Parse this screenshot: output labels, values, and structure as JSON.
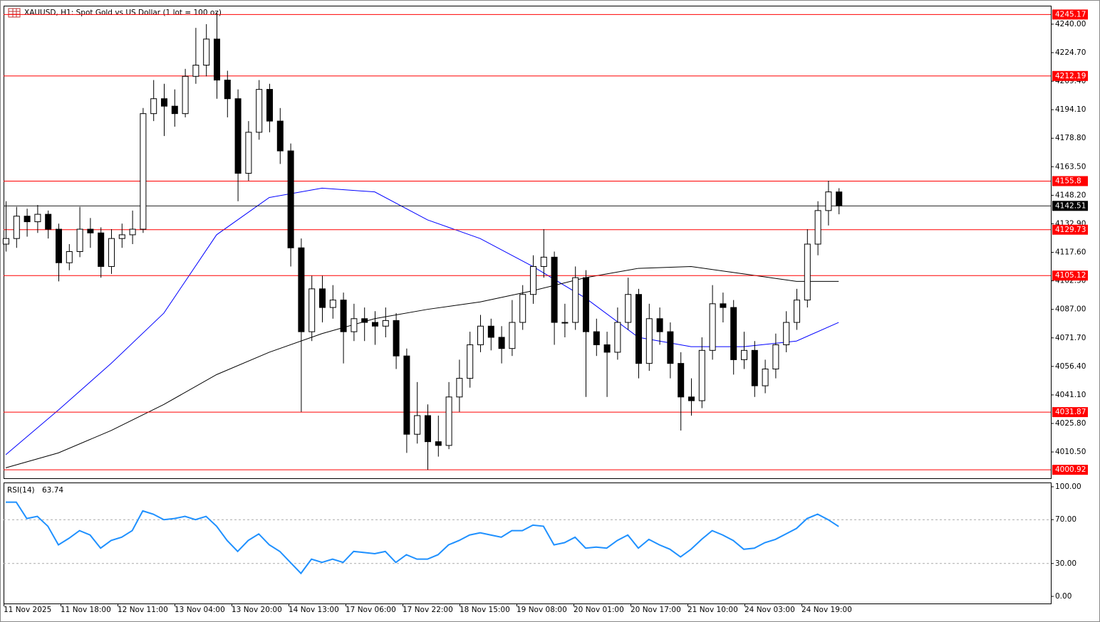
{
  "chart_data": {
    "type": "candlestick",
    "title": "XAUUSD, H1:  Spot Gold vs US Dollar (1 lot = 100 oz)",
    "bull_color": "#ffffff",
    "bear_color": "#000000",
    "ohlc": [
      [
        4122,
        4145,
        4118,
        4125
      ],
      [
        4125,
        4142,
        4120,
        4137
      ],
      [
        4137,
        4141,
        4126,
        4134
      ],
      [
        4134,
        4143,
        4128,
        4138
      ],
      [
        4138,
        4140,
        4125,
        4130
      ],
      [
        4130,
        4133,
        4102,
        4112
      ],
      [
        4112,
        4122,
        4108,
        4118
      ],
      [
        4118,
        4142,
        4115,
        4130
      ],
      [
        4130,
        4136,
        4120,
        4128
      ],
      [
        4128,
        4131,
        4104,
        4110
      ],
      [
        4110,
        4130,
        4106,
        4125
      ],
      [
        4125,
        4133,
        4120,
        4127
      ],
      [
        4127,
        4140,
        4122,
        4130
      ],
      [
        4130,
        4195,
        4128,
        4192
      ],
      [
        4192,
        4210,
        4188,
        4200
      ],
      [
        4200,
        4208,
        4180,
        4196
      ],
      [
        4196,
        4205,
        4185,
        4192
      ],
      [
        4192,
        4216,
        4190,
        4212
      ],
      [
        4212,
        4238,
        4208,
        4218
      ],
      [
        4218,
        4240,
        4212,
        4232
      ],
      [
        4232,
        4246,
        4200,
        4210
      ],
      [
        4210,
        4215,
        4190,
        4200
      ],
      [
        4200,
        4205,
        4145,
        4160
      ],
      [
        4160,
        4188,
        4156,
        4182
      ],
      [
        4182,
        4210,
        4178,
        4205
      ],
      [
        4205,
        4208,
        4182,
        4188
      ],
      [
        4188,
        4195,
        4165,
        4172
      ],
      [
        4172,
        4176,
        4110,
        4120
      ],
      [
        4120,
        4125,
        4032,
        4075
      ],
      [
        4075,
        4105,
        4070,
        4098
      ],
      [
        4098,
        4105,
        4080,
        4088
      ],
      [
        4088,
        4100,
        4082,
        4092
      ],
      [
        4092,
        4096,
        4058,
        4075
      ],
      [
        4075,
        4090,
        4070,
        4082
      ],
      [
        4082,
        4088,
        4070,
        4080
      ],
      [
        4080,
        4086,
        4068,
        4078
      ],
      [
        4078,
        4088,
        4072,
        4081
      ],
      [
        4081,
        4085,
        4055,
        4062
      ],
      [
        4062,
        4066,
        4010,
        4020
      ],
      [
        4020,
        4048,
        4015,
        4030
      ],
      [
        4030,
        4036,
        4001,
        4016
      ],
      [
        4016,
        4030,
        4008,
        4014
      ],
      [
        4014,
        4048,
        4012,
        4040
      ],
      [
        4040,
        4060,
        4032,
        4050
      ],
      [
        4050,
        4075,
        4045,
        4068
      ],
      [
        4068,
        4084,
        4064,
        4078
      ],
      [
        4078,
        4082,
        4065,
        4072
      ],
      [
        4072,
        4078,
        4058,
        4066
      ],
      [
        4066,
        4092,
        4062,
        4080
      ],
      [
        4080,
        4100,
        4076,
        4095
      ],
      [
        4095,
        4116,
        4090,
        4110
      ],
      [
        4110,
        4130,
        4104,
        4115
      ],
      [
        4115,
        4118,
        4068,
        4080
      ],
      [
        4080,
        4090,
        4072,
        4080
      ],
      [
        4080,
        4110,
        4076,
        4104
      ],
      [
        4104,
        4108,
        4040,
        4075
      ],
      [
        4075,
        4082,
        4062,
        4068
      ],
      [
        4068,
        4075,
        4040,
        4064
      ],
      [
        4064,
        4088,
        4060,
        4080
      ],
      [
        4080,
        4104,
        4076,
        4095
      ],
      [
        4095,
        4098,
        4050,
        4058
      ],
      [
        4058,
        4090,
        4054,
        4082
      ],
      [
        4082,
        4088,
        4068,
        4075
      ],
      [
        4075,
        4080,
        4050,
        4058
      ],
      [
        4058,
        4064,
        4022,
        4040
      ],
      [
        4040,
        4050,
        4030,
        4038
      ],
      [
        4038,
        4072,
        4034,
        4065
      ],
      [
        4065,
        4100,
        4060,
        4090
      ],
      [
        4090,
        4096,
        4080,
        4088
      ],
      [
        4088,
        4092,
        4052,
        4060
      ],
      [
        4060,
        4075,
        4055,
        4065
      ],
      [
        4065,
        4070,
        4040,
        4046
      ],
      [
        4046,
        4060,
        4042,
        4055
      ],
      [
        4055,
        4074,
        4050,
        4068
      ],
      [
        4068,
        4086,
        4064,
        4080
      ],
      [
        4080,
        4098,
        4076,
        4092
      ],
      [
        4092,
        4130,
        4088,
        4122
      ],
      [
        4122,
        4145,
        4116,
        4140
      ],
      [
        4140,
        4156,
        4132,
        4150
      ],
      [
        4150,
        4152,
        4138,
        4142.51
      ]
    ],
    "x_labels": [
      "11 Nov 2025",
      "11 Nov 18:00",
      "12 Nov 11:00",
      "13 Nov 04:00",
      "13 Nov 20:00",
      "14 Nov 13:00",
      "17 Nov 06:00",
      "17 Nov 22:00",
      "18 Nov 15:00",
      "19 Nov 08:00",
      "20 Nov 01:00",
      "20 Nov 17:00",
      "21 Nov 10:00",
      "24 Nov 03:00",
      "24 Nov 19:00"
    ],
    "ylim": [
      3996.4,
      4249.9
    ],
    "yticks": [
      {
        "value": 4240.0,
        "label": "4240.00"
      },
      {
        "value": 4224.7,
        "label": "4224.70"
      },
      {
        "value": 4209.4,
        "label": "4209.40"
      },
      {
        "value": 4194.1,
        "label": "4194.10"
      },
      {
        "value": 4178.8,
        "label": "4178.80"
      },
      {
        "value": 4163.5,
        "label": "4163.50"
      },
      {
        "value": 4148.2,
        "label": "4148.20"
      },
      {
        "value": 4132.9,
        "label": "4132.90"
      },
      {
        "value": 4117.6,
        "label": "4117.60"
      },
      {
        "value": 4102.3,
        "label": "4102.30"
      },
      {
        "value": 4087.0,
        "label": "4087.00"
      },
      {
        "value": 4071.7,
        "label": "4071.70"
      },
      {
        "value": 4056.4,
        "label": "4056.40"
      },
      {
        "value": 4041.1,
        "label": "4041.10"
      },
      {
        "value": 4025.8,
        "label": "4025.80"
      },
      {
        "value": 4010.5,
        "label": "4010.50"
      }
    ],
    "levels": {
      "color": "#ff0000",
      "values": [
        4245.17,
        4212.19,
        4155.8,
        4129.73,
        4105.12,
        4031.87,
        4000.92
      ]
    },
    "current_price": {
      "value": 4142.51,
      "color": "#000000"
    },
    "moving_averages": [
      {
        "color": "#0000ff",
        "x": [
          0,
          5,
          10,
          15,
          20,
          25,
          30,
          35,
          40,
          45,
          50,
          55,
          60,
          65,
          70,
          75,
          79
        ],
        "values": [
          4009,
          4033,
          4058,
          4085,
          4127,
          4147,
          4152,
          4150,
          4135,
          4125,
          4110,
          4093,
          4072,
          4067,
          4067,
          4070,
          4080
        ]
      },
      {
        "color": "#000000",
        "x": [
          0,
          5,
          10,
          15,
          20,
          25,
          30,
          35,
          40,
          45,
          50,
          55,
          60,
          65,
          70,
          75,
          79
        ],
        "values": [
          4002,
          4010,
          4022,
          4036,
          4052,
          4064,
          4074,
          4082,
          4087,
          4091,
          4097,
          4104,
          4109,
          4110,
          4106,
          4102,
          4102
        ]
      }
    ],
    "rsi": {
      "name": "RSI(14)",
      "color": "#1e90ff",
      "values": [
        86,
        86,
        71,
        73,
        64,
        47,
        53,
        60,
        56,
        44,
        51,
        54,
        60,
        78,
        75,
        70,
        71,
        73,
        70,
        73,
        64,
        51,
        41,
        51,
        57,
        47,
        41,
        31,
        21,
        34,
        31,
        34,
        31,
        41,
        40,
        39,
        41,
        31,
        38,
        34,
        34,
        38,
        47,
        51,
        56,
        58,
        56,
        54,
        60,
        60,
        65,
        64,
        47,
        49,
        54,
        44,
        45,
        44,
        51,
        56,
        44,
        52,
        47,
        43,
        36,
        43,
        52,
        60,
        56,
        51,
        43,
        44,
        49,
        52,
        57,
        62,
        71,
        75,
        70,
        63.74
      ],
      "ylim": [
        -6.5,
        103.9
      ],
      "yticks": [
        {
          "value": 100,
          "label": "100.00"
        },
        {
          "value": 70,
          "label": "70.00"
        },
        {
          "value": 30,
          "label": "30.00"
        },
        {
          "value": 0,
          "label": "0.00"
        }
      ],
      "levels": [
        70,
        30
      ]
    }
  }
}
